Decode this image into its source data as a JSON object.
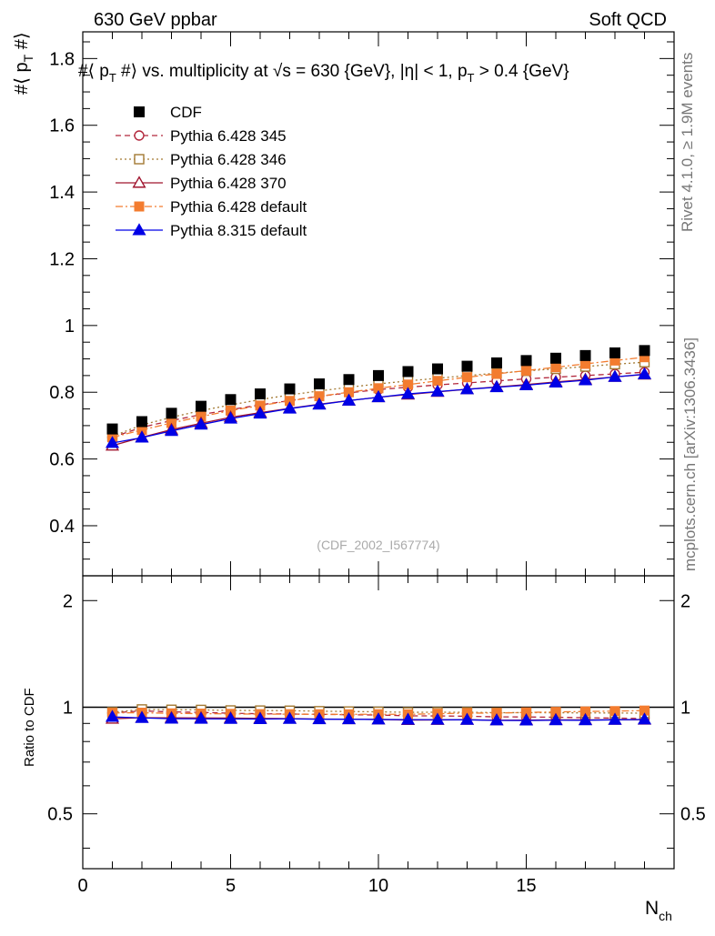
{
  "header": {
    "left": "630 GeV ppbar",
    "right": "Soft QCD"
  },
  "side_labels": {
    "rivet": "Rivet 4.1.0, ≥ 1.9M events",
    "mcplots": "mcplots.cern.ch [arXiv:1306.3436]"
  },
  "chart_data": {
    "type": "scatter",
    "title": "#⟨ p_T #⟩ vs. multiplicity at √s = 630 {GeV}, |η| < 1, p_T > 0.4 {GeV}",
    "title_parts": {
      "a": "#⟨ p",
      "b": "T",
      "c": " #⟩ vs. multiplicity at ",
      "d": "√",
      "e": "s = 630 {GeV}, |η| < 1, p",
      "f": "T",
      "g": " > 0.4 {GeV}"
    },
    "ylabel": {
      "a": "#⟨ p",
      "b": "T",
      "c": " #⟩"
    },
    "xlabel": {
      "a": "N",
      "b": "ch"
    },
    "ratio_ylabel": "Ratio to CDF",
    "watermark": "(CDF_2002_I567774)",
    "xlim": [
      0,
      20
    ],
    "ylim": [
      0.25,
      1.88
    ],
    "ratio_ylim": [
      0.35,
      2.35
    ],
    "x_ticks": [
      "0",
      "5",
      "10",
      "15"
    ],
    "y_ticks": [
      "0.4",
      "0.6",
      "0.8",
      "1",
      "1.2",
      "1.4",
      "1.6",
      "1.8"
    ],
    "ratio_ticks": [
      "0.5",
      "1",
      "2"
    ],
    "x": [
      1,
      2,
      3,
      4,
      5,
      6,
      7,
      8,
      9,
      10,
      11,
      12,
      13,
      14,
      15,
      16,
      17,
      18,
      19
    ],
    "series": [
      {
        "name": "CDF",
        "color": "#000000",
        "marker": "square-filled",
        "line": "none",
        "values": [
          0.69,
          0.712,
          0.737,
          0.758,
          0.778,
          0.795,
          0.81,
          0.825,
          0.838,
          0.85,
          0.862,
          0.87,
          0.878,
          0.888,
          0.895,
          0.902,
          0.91,
          0.918,
          0.925
        ]
      },
      {
        "name": "Pythia 6.428 345",
        "color": "#b2273c",
        "marker": "circle-open",
        "line": "dashed",
        "values": [
          0.665,
          0.695,
          0.715,
          0.733,
          0.748,
          0.762,
          0.775,
          0.788,
          0.798,
          0.808,
          0.815,
          0.822,
          0.828,
          0.834,
          0.84,
          0.845,
          0.85,
          0.855,
          0.86
        ]
      },
      {
        "name": "Pythia 6.428 346",
        "color": "#a37932",
        "marker": "square-open",
        "line": "dotted",
        "values": [
          0.668,
          0.702,
          0.725,
          0.745,
          0.762,
          0.778,
          0.792,
          0.804,
          0.815,
          0.825,
          0.834,
          0.842,
          0.85,
          0.857,
          0.864,
          0.87,
          0.877,
          0.884,
          0.89
        ]
      },
      {
        "name": "Pythia 6.428 370",
        "color": "#a0142e",
        "marker": "triangle-open",
        "line": "solid",
        "values": [
          0.64,
          0.665,
          0.688,
          0.707,
          0.725,
          0.739,
          0.752,
          0.764,
          0.775,
          0.785,
          0.793,
          0.801,
          0.809,
          0.816,
          0.823,
          0.831,
          0.838,
          0.846,
          0.853
        ]
      },
      {
        "name": "Pythia 6.428 default",
        "color": "#f37c2f",
        "marker": "square-filled",
        "line": "dashdot",
        "values": [
          0.665,
          0.687,
          0.708,
          0.727,
          0.745,
          0.76,
          0.774,
          0.788,
          0.8,
          0.812,
          0.823,
          0.834,
          0.845,
          0.855,
          0.865,
          0.875,
          0.885,
          0.895,
          0.905
        ]
      },
      {
        "name": "Pythia 8.315 default",
        "color": "#0000e6",
        "marker": "triangle-filled",
        "line": "solid",
        "values": [
          0.648,
          0.664,
          0.684,
          0.703,
          0.721,
          0.736,
          0.751,
          0.763,
          0.775,
          0.785,
          0.795,
          0.802,
          0.809,
          0.815,
          0.821,
          0.829,
          0.836,
          0.846,
          0.854
        ]
      }
    ]
  }
}
